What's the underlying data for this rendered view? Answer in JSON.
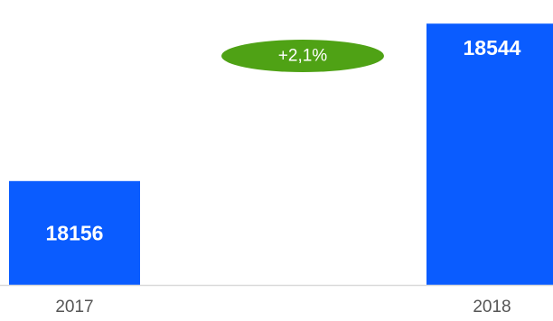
{
  "chart_data": {
    "type": "bar",
    "categories": [
      "2017",
      "2018"
    ],
    "values": [
      18156,
      18544
    ],
    "data_labels": [
      "18156",
      "18544"
    ],
    "title": "",
    "xlabel": "",
    "ylabel": "",
    "ylim": [
      17900,
      18580
    ],
    "grid": false,
    "legend": "none",
    "colors": {
      "bar": "#0a5cff",
      "badge": "#4fa215",
      "axis": "#d9d9d9",
      "tick_text": "#555555"
    }
  },
  "annotation": {
    "change_label": "+2,1%"
  }
}
